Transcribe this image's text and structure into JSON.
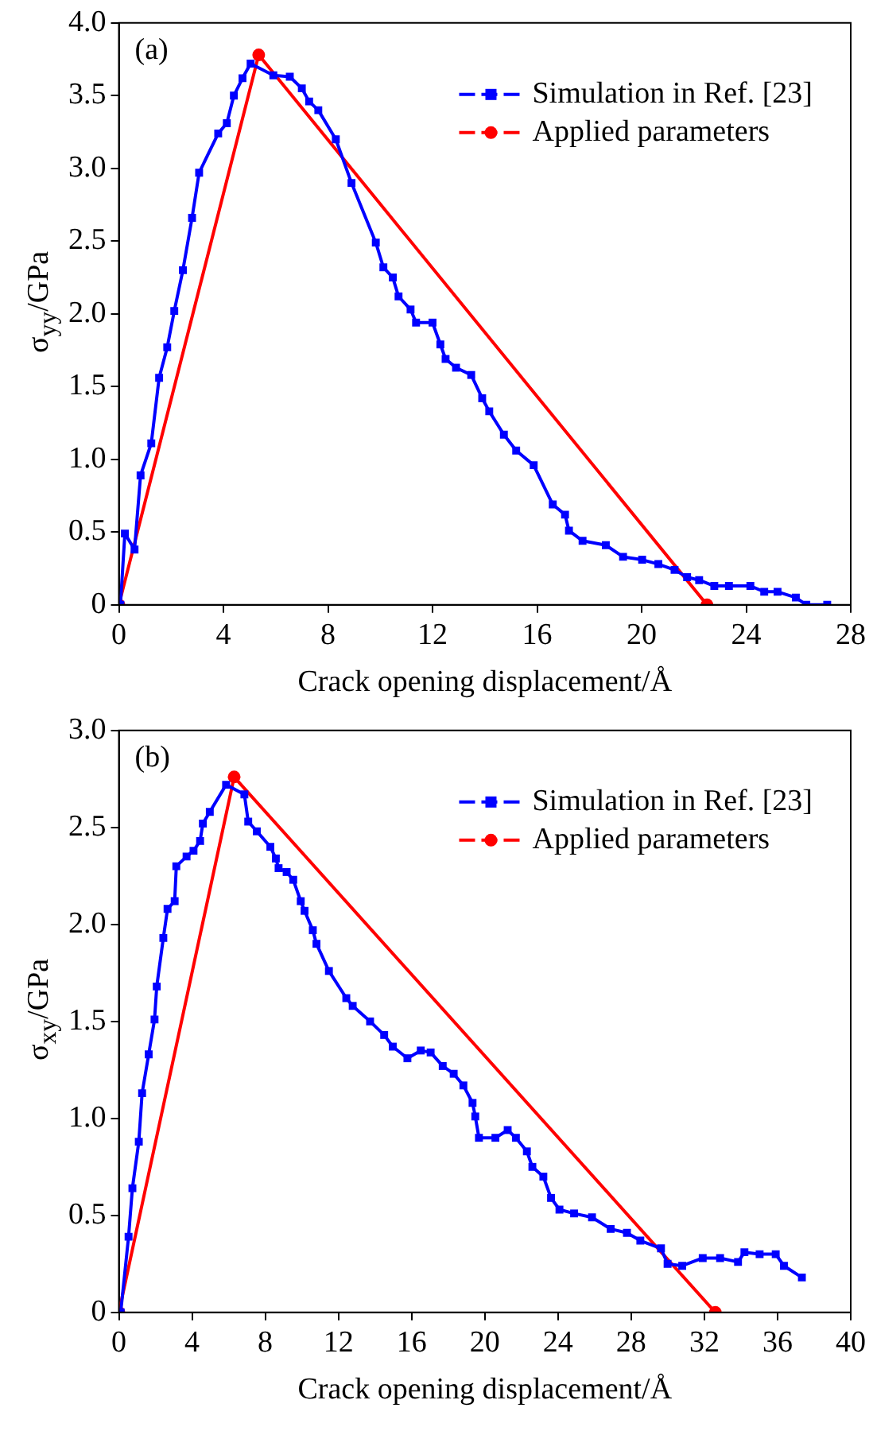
{
  "chart_data": [
    {
      "type": "line",
      "xlabel": "Crack opening displacement/Å",
      "ylabel": "σ$_{yy}$/GPa",
      "annotations": [
        "(a)"
      ],
      "legend": "top right",
      "grid": false,
      "xlim": [
        0,
        28
      ],
      "xticks": [
        0,
        4,
        8,
        12,
        16,
        20,
        24,
        28
      ],
      "ylim": [
        0,
        4
      ],
      "yticks": [
        0,
        0.5,
        {
          "value": 1,
          "label": "1.0"
        },
        1.5,
        {
          "value": 2,
          "label": "2.0"
        },
        2.5,
        {
          "value": 3,
          "label": "3.0"
        },
        3.5,
        {
          "value": 4,
          "label": "4.0"
        }
      ],
      "series": [
        {
          "name": "Simulation in Ref. [23]",
          "color": "#0000ff",
          "marker": "square",
          "x": [
            0.06,
            0.23,
            0.6,
            0.83,
            1.24,
            1.54,
            1.85,
            2.12,
            2.45,
            2.8,
            3.07,
            3.8,
            4.13,
            4.4,
            4.73,
            5.04,
            5.91,
            6.54,
            7.0,
            7.28,
            7.63,
            8.3,
            8.9,
            9.83,
            10.12,
            10.48,
            10.7,
            11.16,
            11.37,
            12.0,
            12.3,
            12.5,
            12.9,
            13.48,
            13.9,
            14.17,
            14.73,
            15.2,
            15.87,
            16.6,
            17.07,
            17.22,
            17.74,
            18.63,
            19.29,
            20.02,
            20.64,
            21.26,
            21.74,
            22.2,
            22.78,
            23.34,
            24.16,
            24.69,
            25.2,
            25.9,
            26.3,
            27.1
          ],
          "values": [
            0,
            0.49,
            0.38,
            0.89,
            1.11,
            1.56,
            1.77,
            2.02,
            2.3,
            2.66,
            2.97,
            3.24,
            3.31,
            3.5,
            3.62,
            3.72,
            3.64,
            3.63,
            3.55,
            3.46,
            3.4,
            3.2,
            2.9,
            2.49,
            2.32,
            2.25,
            2.12,
            2.03,
            1.94,
            1.94,
            1.79,
            1.69,
            1.63,
            1.58,
            1.42,
            1.33,
            1.17,
            1.06,
            0.96,
            0.69,
            0.62,
            0.51,
            0.44,
            0.41,
            0.33,
            0.31,
            0.28,
            0.24,
            0.19,
            0.17,
            0.13,
            0.13,
            0.13,
            0.09,
            0.09,
            0.05,
            0,
            0
          ]
        },
        {
          "name": "Applied parameters",
          "color": "#ff0000",
          "marker": "circle",
          "x": [
            0,
            5.35,
            22.5
          ],
          "values": [
            0,
            3.78,
            0
          ]
        }
      ]
    },
    {
      "type": "line",
      "xlabel": "Crack opening displacement/Å",
      "ylabel": "σ$_{xy}$/GPa",
      "annotations": [
        "(b)"
      ],
      "legend": "top right",
      "grid": false,
      "xlim": [
        0,
        40
      ],
      "xticks": [
        0,
        4,
        8,
        12,
        16,
        20,
        24,
        28,
        32,
        36,
        40
      ],
      "ylim": [
        0,
        3
      ],
      "yticks": [
        0,
        0.5,
        {
          "value": 1,
          "label": "1.0"
        },
        1.5,
        {
          "value": 2,
          "label": "2.0"
        },
        2.5,
        {
          "value": 3,
          "label": "3.0"
        }
      ],
      "series": [
        {
          "name": "Simulation in Ref. [23]",
          "color": "#0000ff",
          "marker": "square",
          "x": [
            0.1,
            0.53,
            0.74,
            1.09,
            1.27,
            1.63,
            1.95,
            2.07,
            2.43,
            2.66,
            3.05,
            3.14,
            3.7,
            4.08,
            4.44,
            4.59,
            4.97,
            5.86,
            6.86,
            7.07,
            7.54,
            8.28,
            8.58,
            8.73,
            9.17,
            9.53,
            9.94,
            10.15,
            10.6,
            10.8,
            11.48,
            12.43,
            12.78,
            13.73,
            14.5,
            14.97,
            15.77,
            16.5,
            17.04,
            17.7,
            18.3,
            18.83,
            19.33,
            19.48,
            19.68,
            20.58,
            21.25,
            21.7,
            22.3,
            22.6,
            23.2,
            23.62,
            24.08,
            24.88,
            25.86,
            26.88,
            27.77,
            28.5,
            29.63,
            29.99,
            30.79,
            31.91,
            32.86,
            33.84,
            34.19,
            35.02,
            35.9,
            36.35,
            37.33
          ],
          "values": [
            0,
            0.39,
            0.64,
            0.88,
            1.13,
            1.33,
            1.51,
            1.68,
            1.93,
            2.08,
            2.12,
            2.3,
            2.35,
            2.38,
            2.43,
            2.52,
            2.58,
            2.72,
            2.67,
            2.53,
            2.48,
            2.4,
            2.34,
            2.29,
            2.27,
            2.23,
            2.12,
            2.07,
            1.97,
            1.9,
            1.76,
            1.62,
            1.58,
            1.5,
            1.43,
            1.37,
            1.31,
            1.35,
            1.34,
            1.27,
            1.23,
            1.17,
            1.08,
            1.01,
            0.9,
            0.9,
            0.94,
            0.9,
            0.83,
            0.75,
            0.7,
            0.59,
            0.53,
            0.51,
            0.49,
            0.43,
            0.41,
            0.37,
            0.33,
            0.25,
            0.24,
            0.28,
            0.28,
            0.26,
            0.31,
            0.3,
            0.3,
            0.24,
            0.18
          ]
        },
        {
          "name": "Applied parameters",
          "color": "#ff0000",
          "marker": "circle",
          "x": [
            0,
            6.3,
            32.6
          ],
          "values": [
            0,
            2.76,
            0
          ]
        }
      ]
    }
  ]
}
